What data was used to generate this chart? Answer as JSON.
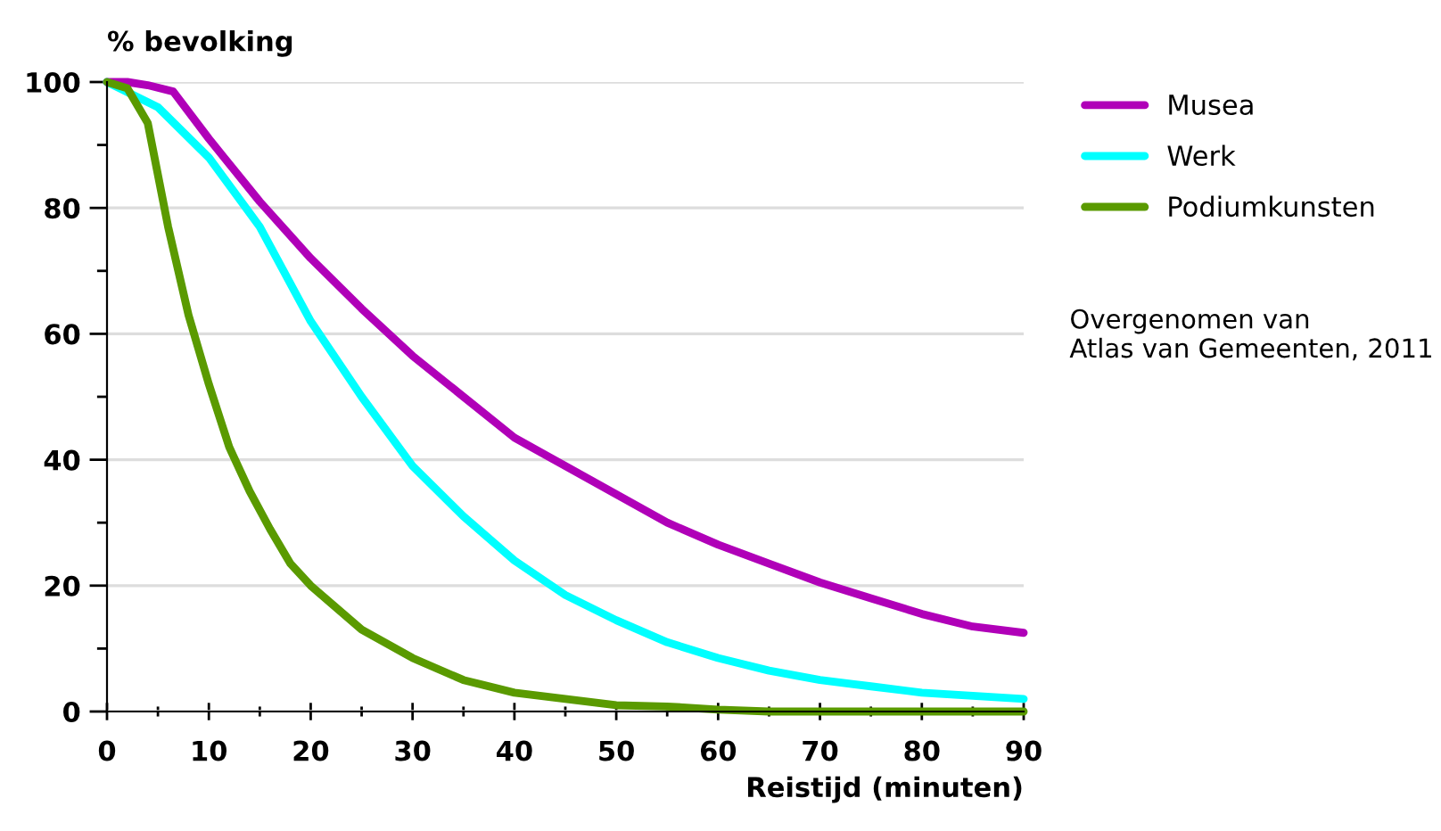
{
  "chart_data": {
    "type": "line",
    "ylabel": "% bevolking",
    "xlabel": "Reistijd (minuten)",
    "series": [
      {
        "name": "Musea",
        "color": "#b000b8",
        "x": [
          0,
          2,
          4,
          6.5,
          10,
          15,
          20,
          25,
          30,
          35,
          40,
          45,
          50,
          55,
          60,
          65,
          70,
          75,
          80,
          85,
          90
        ],
        "values": [
          100,
          100,
          99.5,
          98.5,
          91,
          81,
          72,
          64,
          56.5,
          50,
          43.5,
          39,
          34.5,
          30,
          26.5,
          23.5,
          20.5,
          18,
          15.5,
          13.5,
          12.5
        ]
      },
      {
        "name": "Werk",
        "color": "#00ffff",
        "x": [
          0,
          5,
          10,
          15,
          20,
          25,
          30,
          35,
          40,
          45,
          50,
          55,
          60,
          65,
          70,
          75,
          80,
          85,
          90
        ],
        "values": [
          100,
          96,
          88,
          77,
          62,
          50,
          39,
          31,
          24,
          18.5,
          14.5,
          11,
          8.5,
          6.5,
          5,
          4,
          3,
          2.5,
          2
        ]
      },
      {
        "name": "Podiumkunsten",
        "color": "#5a9a00",
        "x": [
          0,
          2,
          4,
          6,
          8,
          10,
          12,
          14,
          16,
          18,
          20,
          25,
          30,
          35,
          40,
          45,
          50,
          55,
          60,
          65,
          90
        ],
        "values": [
          100,
          99,
          93.5,
          77,
          63,
          52,
          42,
          35,
          29,
          23.5,
          20,
          13,
          8.5,
          5,
          3,
          2,
          1,
          0.8,
          0.3,
          0,
          0
        ]
      }
    ],
    "xlim": [
      0,
      90
    ],
    "ylim": [
      0,
      100
    ],
    "xticks": [
      0,
      {
        "value": 5,
        "label": null
      },
      10,
      {
        "value": 15,
        "label": null
      },
      20,
      {
        "value": 25,
        "label": null
      },
      30,
      {
        "value": 35,
        "label": null
      },
      40,
      {
        "value": 45,
        "label": null
      },
      50,
      {
        "value": 55,
        "label": null
      },
      60,
      {
        "value": 65,
        "label": null
      },
      70,
      {
        "value": 75,
        "label": null
      },
      80,
      {
        "value": 85,
        "label": null
      },
      90
    ],
    "yticks": [
      0,
      {
        "value": 10,
        "label": null
      },
      20,
      {
        "value": 30,
        "label": null
      },
      40,
      {
        "value": 50,
        "label": null
      },
      60,
      {
        "value": 70,
        "label": null
      },
      80,
      {
        "value": 90,
        "label": null
      },
      100
    ],
    "grid": "y",
    "legend": "top right",
    "marker": "none",
    "line_style": "solid",
    "annotations": [
      "Overgenomen van\nAtlas van Gemeenten, 2011"
    ]
  }
}
